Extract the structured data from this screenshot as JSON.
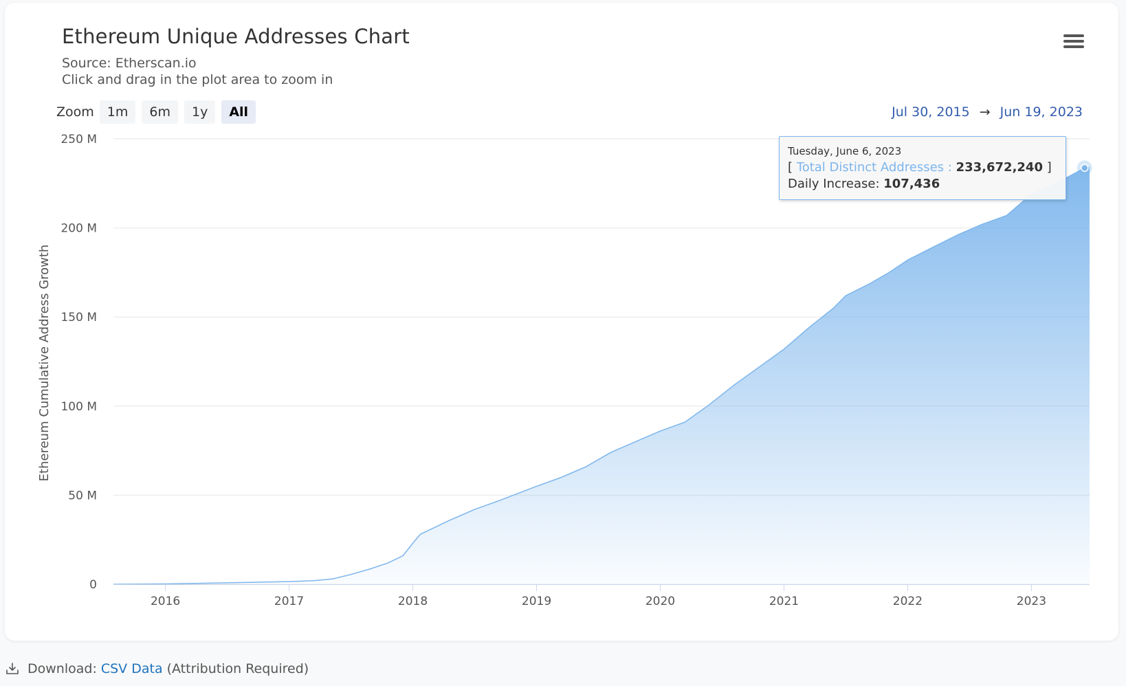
{
  "chart_header": {
    "title": "Ethereum Unique Addresses Chart",
    "source": "Source: Etherscan.io",
    "hint": "Click and drag in the plot area to zoom in",
    "menu_icon": "hamburger-menu-icon"
  },
  "zoom": {
    "label": "Zoom",
    "buttons": [
      "1m",
      "6m",
      "1y",
      "All"
    ],
    "active": "All"
  },
  "range": {
    "from": "Jul 30, 2015",
    "arrow": "→",
    "to": "Jun 19, 2023"
  },
  "tooltip": {
    "date": "Tuesday, June 6, 2023",
    "bracket_open": "[",
    "series_label": "Total Distinct Addresses :",
    "series_value": "233,672,240",
    "bracket_close": "]",
    "increase_label": "Daily Increase:",
    "increase_value": "107,436"
  },
  "footer": {
    "download_label": "Download:",
    "link_text": "CSV Data",
    "note": "(Attribution Required)",
    "icon": "download-icon"
  },
  "colors": {
    "series": "#7cb5ec",
    "range_text": "#335cad",
    "link": "#1e73be"
  },
  "chart_data": {
    "type": "area",
    "ylabel": "Ethereum Cumulative Address Growth",
    "ylim": [
      0,
      250000000
    ],
    "y_ticks": [
      0,
      50000000,
      100000000,
      150000000,
      200000000,
      250000000
    ],
    "y_tick_labels": [
      "0",
      "50 M",
      "100 M",
      "150 M",
      "200 M",
      "250 M"
    ],
    "x_tick_labels": [
      "2016",
      "2017",
      "2018",
      "2019",
      "2020",
      "2021",
      "2022",
      "2023"
    ],
    "x_tick_values": [
      2016.0,
      2017.0,
      2018.0,
      2019.0,
      2020.0,
      2021.0,
      2022.0,
      2023.0
    ],
    "xlim": [
      2015.58,
      2023.47
    ],
    "grid": true,
    "series": [
      {
        "name": "Total Distinct Addresses",
        "x": [
          2015.58,
          2016.0,
          2016.5,
          2017.0,
          2017.2,
          2017.35,
          2017.5,
          2017.65,
          2017.8,
          2017.92,
          2018.0,
          2018.06,
          2018.15,
          2018.3,
          2018.5,
          2018.7,
          2018.85,
          2019.0,
          2019.2,
          2019.4,
          2019.6,
          2019.8,
          2020.0,
          2020.2,
          2020.4,
          2020.6,
          2020.8,
          2021.0,
          2021.2,
          2021.4,
          2021.5,
          2021.7,
          2021.85,
          2022.0,
          2022.2,
          2022.4,
          2022.6,
          2022.8,
          2022.9,
          2023.0,
          2023.2,
          2023.43,
          2023.47
        ],
        "y": [
          0,
          200000,
          800000,
          1500000,
          2000000,
          3000000,
          5500000,
          8500000,
          12000000,
          16000000,
          23000000,
          28000000,
          31000000,
          36000000,
          42000000,
          47000000,
          51000000,
          55000000,
          60000000,
          66000000,
          74000000,
          80000000,
          86000000,
          91000000,
          101000000,
          112000000,
          122000000,
          132000000,
          144000000,
          155000000,
          162000000,
          169000000,
          175000000,
          182000000,
          189000000,
          196000000,
          202000000,
          207000000,
          213000000,
          219000000,
          225000000,
          233672240,
          234000000
        ]
      }
    ],
    "highlight": {
      "date": "Tuesday, June 6, 2023",
      "x": 2023.43,
      "y": 233672240
    }
  }
}
